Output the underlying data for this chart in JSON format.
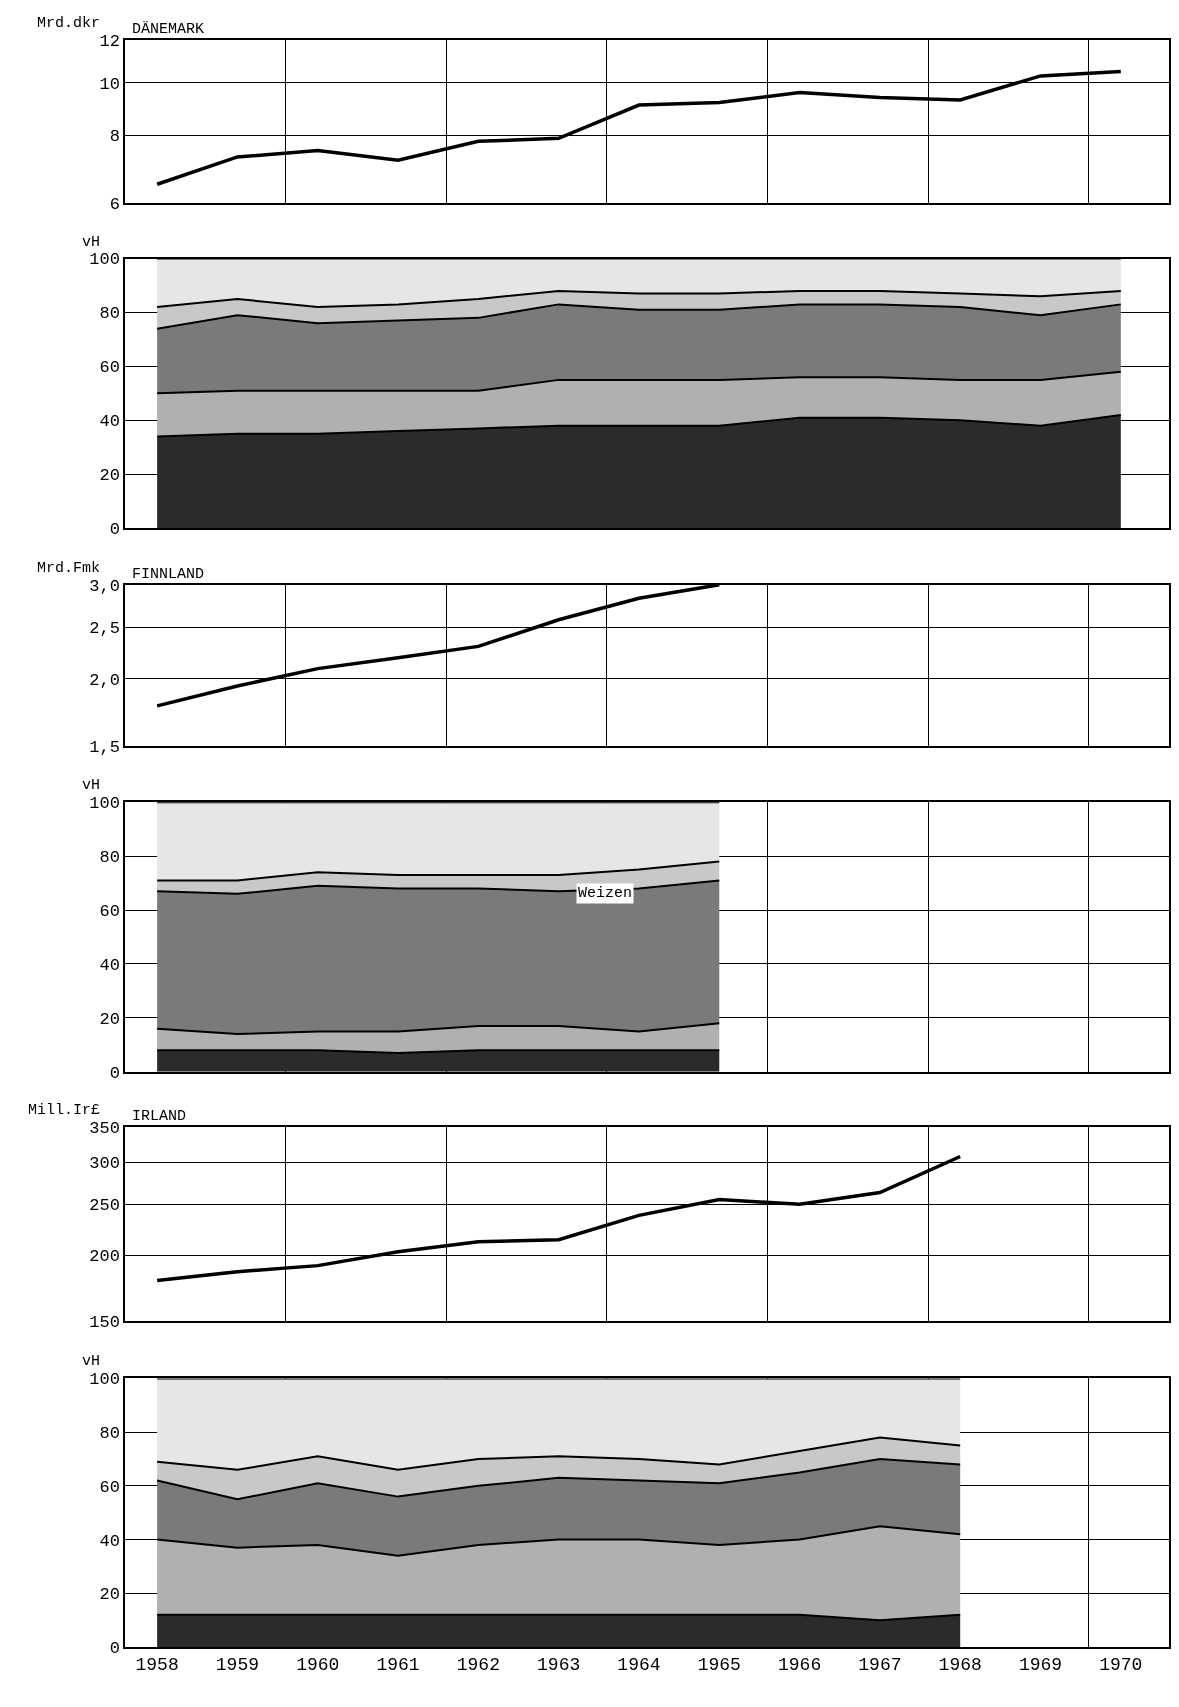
{
  "chart_data": [
    {
      "type": "line",
      "title": "DÄNEMARK",
      "ylabel": "Mrd.dkr",
      "log": true,
      "grid": true,
      "tick_labels": "y",
      "x": [
        1958,
        1959,
        1960,
        1961,
        1962,
        1963,
        1964,
        1965,
        1966,
        1967,
        1968,
        1969,
        1970
      ],
      "xlim": [
        1957.6,
        1970.6
      ],
      "ylim": [
        6,
        12
      ],
      "yticks": [
        6,
        8,
        10,
        12
      ],
      "series": [
        {
          "color": "#000000",
          "values": [
            6.5,
            7.3,
            7.5,
            7.2,
            7.8,
            7.9,
            9.1,
            9.2,
            9.6,
            9.4,
            9.3,
            10.3,
            10.5
          ]
        }
      ]
    },
    {
      "type": "area",
      "ylabel": "vH",
      "stacked": true,
      "grid": true,
      "tick_labels": "y",
      "x": [
        1958,
        1959,
        1960,
        1961,
        1962,
        1963,
        1964,
        1965,
        1966,
        1967,
        1968,
        1969,
        1970
      ],
      "xlim": [
        1957.6,
        1970.6
      ],
      "ylim": [
        0,
        100
      ],
      "yticks": [
        0,
        20,
        40,
        60,
        80,
        100
      ],
      "series": [
        {
          "color": "#2b2b2b",
          "values": [
            34,
            35,
            35,
            36,
            37,
            38,
            38,
            38,
            41,
            41,
            40,
            38,
            42
          ]
        },
        {
          "color": "#b0b0b0",
          "values": [
            16,
            16,
            16,
            15,
            14,
            17,
            17,
            17,
            15,
            15,
            15,
            17,
            16
          ]
        },
        {
          "color": "#7a7a7a",
          "values": [
            24,
            28,
            25,
            26,
            27,
            28,
            26,
            26,
            27,
            27,
            27,
            24,
            25
          ]
        },
        {
          "color": "#c8c8c8",
          "values": [
            8,
            6,
            6,
            6,
            7,
            5,
            6,
            6,
            5,
            5,
            5,
            7,
            5
          ]
        },
        {
          "color": "#e6e6e6",
          "values": [
            18,
            15,
            18,
            17,
            15,
            12,
            13,
            13,
            12,
            12,
            13,
            14,
            12
          ]
        }
      ]
    },
    {
      "type": "line",
      "title": "FINNLAND",
      "ylabel": "Mrd.Fmk",
      "log": true,
      "grid": true,
      "tick_labels": "y",
      "x": [
        1958,
        1959,
        1960,
        1961,
        1962,
        1963,
        1964,
        1965
      ],
      "xlim": [
        1957.6,
        1970.6
      ],
      "ylim": [
        1.5,
        3.0
      ],
      "yticks": [
        {
          "value": 1.5,
          "label": "1,5"
        },
        {
          "value": 2.0,
          "label": "2,0"
        },
        {
          "value": 2.5,
          "label": "2,5"
        },
        {
          "value": 3.0,
          "label": "3,0"
        }
      ],
      "series": [
        {
          "color": "#000000",
          "values": [
            1.78,
            1.94,
            2.09,
            2.19,
            2.3,
            2.58,
            2.83,
            3.0
          ]
        }
      ]
    },
    {
      "type": "area",
      "ylabel": "vH",
      "stacked": true,
      "grid": true,
      "tick_labels": "y",
      "x": [
        1958,
        1959,
        1960,
        1961,
        1962,
        1963,
        1964,
        1965
      ],
      "xlim": [
        1957.6,
        1970.6
      ],
      "ylim": [
        0,
        100
      ],
      "yticks": [
        0,
        20,
        40,
        60,
        80,
        100
      ],
      "annotations": [
        "Weizen"
      ],
      "series": [
        {
          "color": "#2b2b2b",
          "values": [
            8,
            8,
            8,
            7,
            8,
            8,
            8,
            8
          ]
        },
        {
          "color": "#b0b0b0",
          "values": [
            8,
            6,
            7,
            8,
            9,
            9,
            7,
            10
          ]
        },
        {
          "color": "#7a7a7a",
          "values": [
            51,
            52,
            54,
            53,
            51,
            50,
            53,
            53
          ]
        },
        {
          "color": "#c8c8c8",
          "values": [
            4,
            5,
            5,
            5,
            5,
            6,
            7,
            7
          ]
        },
        {
          "color": "#e6e6e6",
          "values": [
            29,
            29,
            26,
            27,
            27,
            27,
            25,
            22
          ]
        }
      ]
    },
    {
      "type": "line",
      "title": "IRLAND",
      "ylabel": "Mill.Ir£",
      "log": true,
      "grid": true,
      "tick_labels": "y",
      "x": [
        1958,
        1959,
        1960,
        1961,
        1962,
        1963,
        1964,
        1965,
        1966,
        1967,
        1968
      ],
      "xlim": [
        1957.6,
        1970.6
      ],
      "ylim": [
        150,
        350
      ],
      "yticks": [
        150,
        200,
        250,
        300,
        350
      ],
      "series": [
        {
          "color": "#000000",
          "values": [
            179,
            186,
            191,
            203,
            212,
            214,
            238,
            255,
            250,
            263,
            308
          ]
        }
      ]
    },
    {
      "type": "area",
      "ylabel": "vH",
      "stacked": true,
      "grid": true,
      "x": [
        1958,
        1959,
        1960,
        1961,
        1962,
        1963,
        1964,
        1965,
        1966,
        1967,
        1968
      ],
      "xlim": [
        1957.6,
        1970.6
      ],
      "xticks": [
        1958,
        1959,
        1960,
        1961,
        1962,
        1963,
        1964,
        1965,
        1966,
        1967,
        1968,
        1969,
        1970
      ],
      "ylim": [
        0,
        100
      ],
      "yticks": [
        0,
        20,
        40,
        60,
        80,
        100
      ],
      "series": [
        {
          "color": "#2b2b2b",
          "values": [
            12,
            12,
            12,
            12,
            12,
            12,
            12,
            12,
            12,
            10,
            12
          ]
        },
        {
          "color": "#b0b0b0",
          "values": [
            28,
            25,
            26,
            22,
            26,
            28,
            28,
            26,
            28,
            35,
            30
          ]
        },
        {
          "color": "#7a7a7a",
          "values": [
            22,
            18,
            23,
            22,
            22,
            23,
            22,
            23,
            25,
            25,
            26
          ]
        },
        {
          "color": "#c8c8c8",
          "values": [
            7,
            11,
            10,
            10,
            10,
            8,
            8,
            7,
            8,
            8,
            7
          ]
        },
        {
          "color": "#e6e6e6",
          "values": [
            31,
            34,
            29,
            34,
            30,
            29,
            30,
            32,
            27,
            22,
            25
          ]
        }
      ]
    }
  ]
}
